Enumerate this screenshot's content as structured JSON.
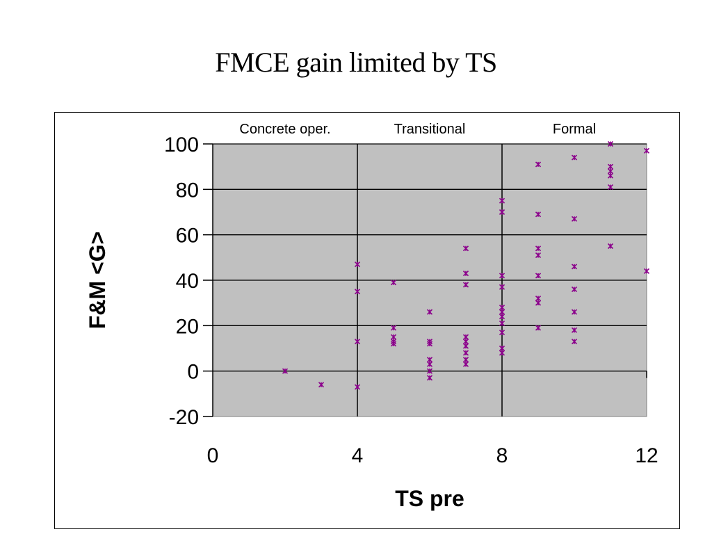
{
  "slide": {
    "title": "FMCE gain limited by TS"
  },
  "chart_data": {
    "type": "scatter",
    "title": "",
    "xlabel": "TS pre",
    "ylabel": "F&M <G>",
    "xlim": [
      0,
      12
    ],
    "ylim": [
      -20,
      100
    ],
    "x_ticks": [
      0,
      4,
      8,
      12
    ],
    "y_ticks": [
      -20,
      0,
      20,
      40,
      60,
      80,
      100
    ],
    "grid": true,
    "plot_background": "#C0C0C0",
    "marker_color": "#8B008B",
    "marker": "asterisk",
    "region_dividers": [
      4,
      8
    ],
    "region_labels": [
      {
        "text": "Concrete oper.",
        "x_center": 2
      },
      {
        "text": "Transitional",
        "x_center": 6
      },
      {
        "text": "Formal",
        "x_center": 10
      }
    ],
    "series": [
      {
        "points": [
          [
            2,
            0
          ],
          [
            3,
            -6
          ],
          [
            4,
            47
          ],
          [
            4,
            35
          ],
          [
            4,
            13
          ],
          [
            4,
            -7
          ],
          [
            5,
            39
          ],
          [
            5,
            19
          ],
          [
            5,
            15
          ],
          [
            5,
            13
          ],
          [
            5,
            12
          ],
          [
            6,
            26
          ],
          [
            6,
            13
          ],
          [
            6,
            12
          ],
          [
            6,
            5
          ],
          [
            6,
            3
          ],
          [
            6,
            0
          ],
          [
            6,
            -3
          ],
          [
            7,
            54
          ],
          [
            7,
            43
          ],
          [
            7,
            38
          ],
          [
            7,
            15
          ],
          [
            7,
            13
          ],
          [
            7,
            11
          ],
          [
            7,
            8
          ],
          [
            7,
            5
          ],
          [
            7,
            3
          ],
          [
            8,
            75
          ],
          [
            8,
            70
          ],
          [
            8,
            42
          ],
          [
            8,
            37
          ],
          [
            8,
            28
          ],
          [
            8,
            26
          ],
          [
            8,
            24
          ],
          [
            8,
            21
          ],
          [
            8,
            17
          ],
          [
            8,
            10
          ],
          [
            8,
            8
          ],
          [
            9,
            91
          ],
          [
            9,
            69
          ],
          [
            9,
            54
          ],
          [
            9,
            51
          ],
          [
            9,
            42
          ],
          [
            9,
            32
          ],
          [
            9,
            30
          ],
          [
            9,
            19
          ],
          [
            10,
            94
          ],
          [
            10,
            67
          ],
          [
            10,
            46
          ],
          [
            10,
            36
          ],
          [
            10,
            26
          ],
          [
            10,
            18
          ],
          [
            10,
            13
          ],
          [
            11,
            100
          ],
          [
            11,
            90
          ],
          [
            11,
            88
          ],
          [
            11,
            86
          ],
          [
            11,
            81
          ],
          [
            11,
            55
          ],
          [
            12,
            97
          ],
          [
            12,
            44
          ]
        ]
      }
    ]
  }
}
